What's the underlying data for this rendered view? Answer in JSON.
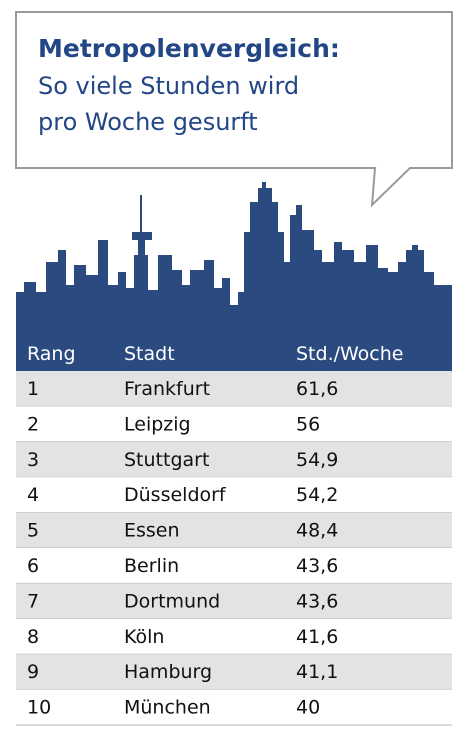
{
  "header": {
    "title": "Metropolenvergleich:",
    "subtitle_lines": [
      "So viele Stunden wird",
      "pro Woche gesurft"
    ]
  },
  "table": {
    "columns": [
      "Rang",
      "Stadt",
      "Std./Woche"
    ],
    "rows": [
      [
        "1",
        "Frankfurt",
        "61,6"
      ],
      [
        "2",
        "Leipzig",
        "56"
      ],
      [
        "3",
        "Stuttgart",
        "54,9"
      ],
      [
        "4",
        "Düsseldorf",
        "54,2"
      ],
      [
        "5",
        "Essen",
        "48,4"
      ],
      [
        "6",
        "Berlin",
        "43,6"
      ],
      [
        "7",
        "Dortmund",
        "43,6"
      ],
      [
        "8",
        "Köln",
        "41,6"
      ],
      [
        "9",
        "Hamburg",
        "41,1"
      ],
      [
        "10",
        "München",
        "40"
      ]
    ]
  }
}
